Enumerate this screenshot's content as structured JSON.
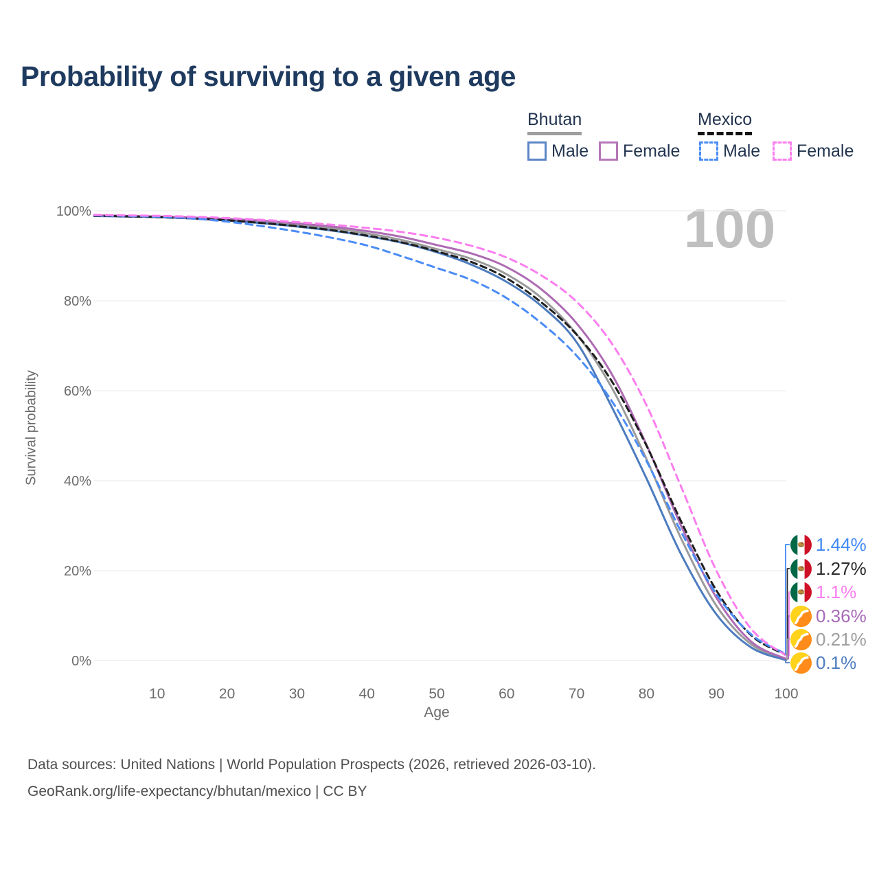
{
  "title": "Probability of surviving to a given age",
  "legend": {
    "groups": [
      {
        "label": "Bhutan",
        "line_style": "solid",
        "underline_color": "#9e9e9e"
      },
      {
        "label": "Mexico",
        "line_style": "dashed",
        "underline_color": "#141414"
      }
    ],
    "items": [
      {
        "country": "Bhutan",
        "label": "Male",
        "style": "solid",
        "color": "#5b86c5"
      },
      {
        "country": "Bhutan",
        "label": "Female",
        "style": "solid",
        "color": "#b577b9"
      },
      {
        "country": "Mexico",
        "label": "Male",
        "style": "dashed",
        "color": "#4b8cf5"
      },
      {
        "country": "Mexico",
        "label": "Female",
        "style": "dashed",
        "color": "#fb7eee"
      }
    ]
  },
  "chart_data": {
    "type": "line",
    "title": "Probability of surviving to a given age",
    "xlabel": "Age",
    "ylabel": "Survival probability",
    "xlim": [
      0,
      100
    ],
    "ylim": [
      0,
      100
    ],
    "x_ticks": [
      10,
      20,
      30,
      40,
      50,
      60,
      70,
      80,
      90,
      100
    ],
    "y_ticks": [
      0,
      20,
      40,
      60,
      80,
      100
    ],
    "y_tick_suffix": "%",
    "grid": "horizontal",
    "watermark": "100",
    "x": [
      1,
      5,
      10,
      15,
      20,
      25,
      30,
      35,
      40,
      45,
      50,
      55,
      60,
      65,
      70,
      75,
      80,
      85,
      90,
      95,
      100
    ],
    "series": [
      {
        "name": "Bhutan (both sexes)",
        "country": "Bhutan",
        "sex": "Both",
        "style": "solid",
        "color": "#9b9b9b",
        "values": [
          98.95,
          98.85,
          98.7,
          98.4,
          98.05,
          97.55,
          96.9,
          96.1,
          95.0,
          93.5,
          91.5,
          89.3,
          85.9,
          80.6,
          72.6,
          60.8,
          44.8,
          27.0,
          12.2,
          3.6,
          0.21
        ]
      },
      {
        "name": "Bhutan Male",
        "country": "Bhutan",
        "sex": "Male",
        "style": "solid",
        "color": "#4d7cbf",
        "values": [
          98.85,
          98.75,
          98.6,
          98.3,
          97.85,
          97.25,
          96.5,
          95.6,
          94.4,
          92.9,
          90.8,
          88.0,
          84.2,
          78.8,
          70.8,
          56.5,
          40.5,
          23.5,
          10.3,
          2.9,
          0.1
        ]
      },
      {
        "name": "Bhutan Female",
        "country": "Bhutan",
        "sex": "Female",
        "style": "solid",
        "color": "#ae6bb4",
        "values": [
          99.0,
          98.9,
          98.75,
          98.5,
          98.2,
          97.8,
          97.2,
          96.5,
          95.5,
          94.2,
          92.4,
          90.5,
          87.5,
          82.5,
          75.0,
          63.8,
          48.0,
          29.8,
          14.0,
          4.2,
          0.36
        ]
      },
      {
        "name": "Mexico (both sexes)",
        "country": "Mexico",
        "sex": "Both",
        "style": "dashed",
        "color": "#1f1f1f",
        "values": [
          98.9,
          98.8,
          98.6,
          98.3,
          97.9,
          97.3,
          96.6,
          95.7,
          94.5,
          93.0,
          91.0,
          88.6,
          85.0,
          79.6,
          72.5,
          62.2,
          47.8,
          30.8,
          15.6,
          5.6,
          1.27
        ]
      },
      {
        "name": "Mexico Male",
        "country": "Mexico",
        "sex": "Male",
        "style": "dashed",
        "color": "#4b8cf5",
        "values": [
          99.0,
          98.9,
          98.7,
          98.3,
          97.6,
          96.6,
          95.4,
          94.0,
          92.3,
          89.9,
          87.3,
          84.6,
          80.6,
          75.0,
          67.8,
          57.8,
          44.4,
          28.5,
          14.8,
          5.8,
          1.44
        ]
      },
      {
        "name": "Mexico Female",
        "country": "Mexico",
        "sex": "Female",
        "style": "dashed",
        "color": "#fb7eee",
        "values": [
          99.1,
          99.0,
          98.9,
          98.7,
          98.4,
          98.0,
          97.5,
          96.9,
          96.2,
          95.3,
          94.0,
          92.2,
          89.6,
          85.6,
          79.8,
          70.6,
          56.8,
          38.5,
          20.0,
          7.0,
          1.1
        ]
      }
    ],
    "end_labels": [
      {
        "text": "1.44%",
        "color": "#4189f4",
        "flag": "mexico",
        "series": "Mexico Male"
      },
      {
        "text": "1.27%",
        "color": "#2a2a2a",
        "flag": "mexico",
        "series": "Mexico (both sexes)"
      },
      {
        "text": "1.1%",
        "color": "#fb7eee",
        "flag": "mexico",
        "series": "Mexico Female"
      },
      {
        "text": "0.36%",
        "color": "#a76ab8",
        "flag": "bhutan",
        "series": "Bhutan Female"
      },
      {
        "text": "0.21%",
        "color": "#9e9e9e",
        "flag": "bhutan",
        "series": "Bhutan (both sexes)"
      },
      {
        "text": "0.1%",
        "color": "#4d7cbf",
        "flag": "bhutan",
        "series": "Bhutan Male"
      }
    ]
  },
  "footer": {
    "line1": "Data sources: United Nations | World Population Prospects (2026, retrieved 2026-03-10).",
    "line2": "GeoRank.org/life-expectancy/bhutan/mexico | CC BY"
  }
}
